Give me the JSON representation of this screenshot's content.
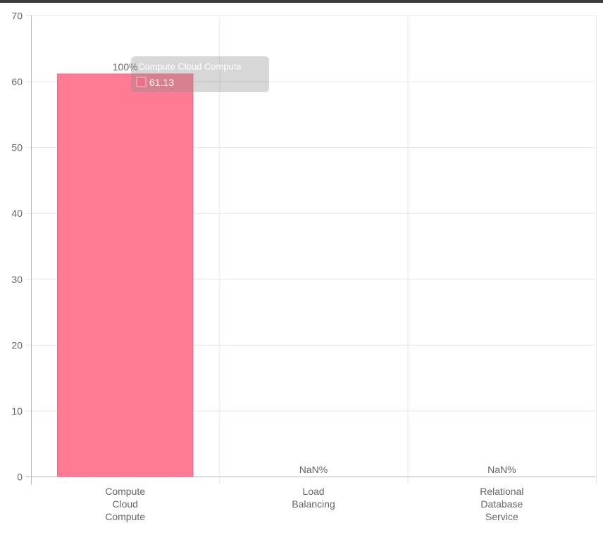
{
  "chart_data": {
    "type": "bar",
    "title": "",
    "xlabel": "",
    "ylabel": "",
    "categories": [
      [
        "Compute",
        "Cloud",
        "Compute"
      ],
      [
        "Load",
        "Balancing"
      ],
      [
        "Relational",
        "Database",
        "Service"
      ]
    ],
    "values": [
      61.13,
      null,
      null
    ],
    "data_labels": [
      "100%",
      "NaN%",
      "NaN%"
    ],
    "ylim": [
      0,
      70
    ],
    "yticks": [
      0,
      10,
      20,
      30,
      40,
      50,
      60,
      70
    ],
    "grid": true,
    "colors": {
      "bar_fill": "#ff7a93",
      "bar_stroke": "#ff6384",
      "grid": "#e6e6e6",
      "axis": "#b8b8b8",
      "text": "#666666"
    }
  },
  "tooltip": {
    "title": "Compute Cloud Compute",
    "value": "61.13",
    "swatch_color": "#ff6384"
  }
}
